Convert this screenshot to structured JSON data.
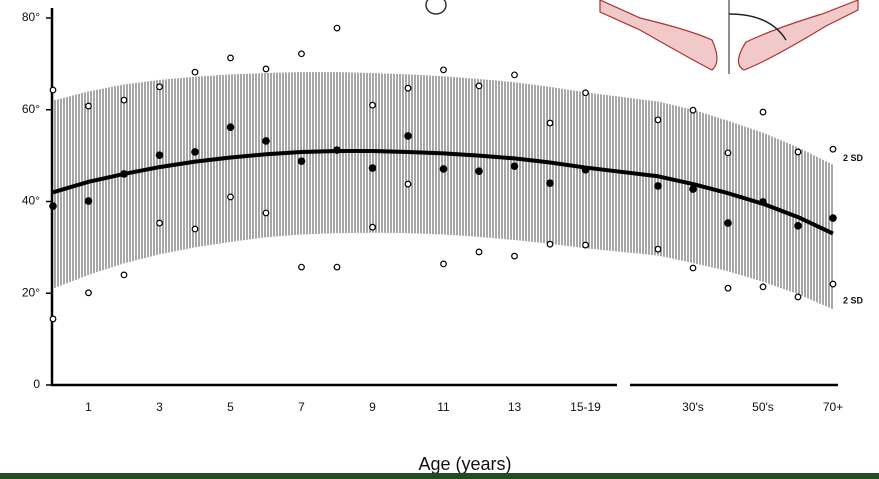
{
  "chart_data": {
    "type": "line",
    "x_label": "Age (years)",
    "categories": [
      null,
      "1",
      null,
      "3",
      null,
      "5",
      null,
      "7",
      null,
      "9",
      null,
      "11",
      null,
      "13",
      null,
      "15-19",
      null,
      "30's",
      null,
      "50's",
      null,
      "70+"
    ],
    "ylim": [
      0,
      80
    ],
    "yticks": [
      0,
      {
        "value": 20,
        "label": "20°"
      },
      {
        "value": 40,
        "label": "40°"
      },
      {
        "value": 60,
        "label": "60°"
      },
      {
        "value": 80,
        "label": "80°"
      }
    ],
    "mean_points": {
      "color": "#000000",
      "values": [
        39.0,
        40.1,
        46.0,
        50.1,
        50.8,
        56.2,
        53.2,
        48.8,
        51.2,
        47.3,
        54.3,
        47.1,
        46.6,
        47.7,
        44.0,
        46.9,
        43.4,
        42.7,
        35.3,
        39.9,
        34.7,
        36.4
      ]
    },
    "upper_points": {
      "color": "#000000",
      "values": [
        64.3,
        60.8,
        62.1,
        65.0,
        68.2,
        71.3,
        68.9,
        72.2,
        77.8,
        61.0,
        64.7,
        68.7,
        65.2,
        67.6,
        57.1,
        63.7,
        57.8,
        59.9,
        50.6,
        59.5,
        50.8,
        51.4
      ]
    },
    "lower_points": {
      "color": "#000000",
      "values": [
        14.4,
        20.1,
        24.0,
        35.3,
        34.0,
        41.0,
        37.5,
        25.7,
        25.7,
        34.4,
        43.8,
        26.4,
        29.0,
        28.1,
        30.7,
        30.5,
        29.6,
        25.5,
        21.1,
        21.4,
        19.2,
        22.0
      ]
    },
    "fit": {
      "color": "#000000",
      "values": [
        42.0,
        44.3,
        46.0,
        47.5,
        48.7,
        49.6,
        50.3,
        50.8,
        51.0,
        51.0,
        50.8,
        50.5,
        50.0,
        49.4,
        48.5,
        47.4,
        45.5,
        43.8,
        41.8,
        39.5,
        36.6,
        33.0
      ]
    },
    "band_upper": {
      "values": [
        62,
        64,
        65.5,
        66.5,
        67.2,
        67.7,
        68,
        68.2,
        68.2,
        68,
        67.7,
        67.3,
        66.7,
        66,
        65,
        63.8,
        61.8,
        60,
        57.6,
        55,
        51.8,
        48
      ]
    },
    "band_lower": {
      "values": [
        21,
        24,
        26.5,
        28.5,
        30,
        31.2,
        32.2,
        32.8,
        33.1,
        33.2,
        33.1,
        32.8,
        32.3,
        31.6,
        30.8,
        29.8,
        28.2,
        26.6,
        24.8,
        22.5,
        19.8,
        16.5
      ]
    },
    "band_labels": [
      "2 SD",
      "2 SD"
    ]
  }
}
